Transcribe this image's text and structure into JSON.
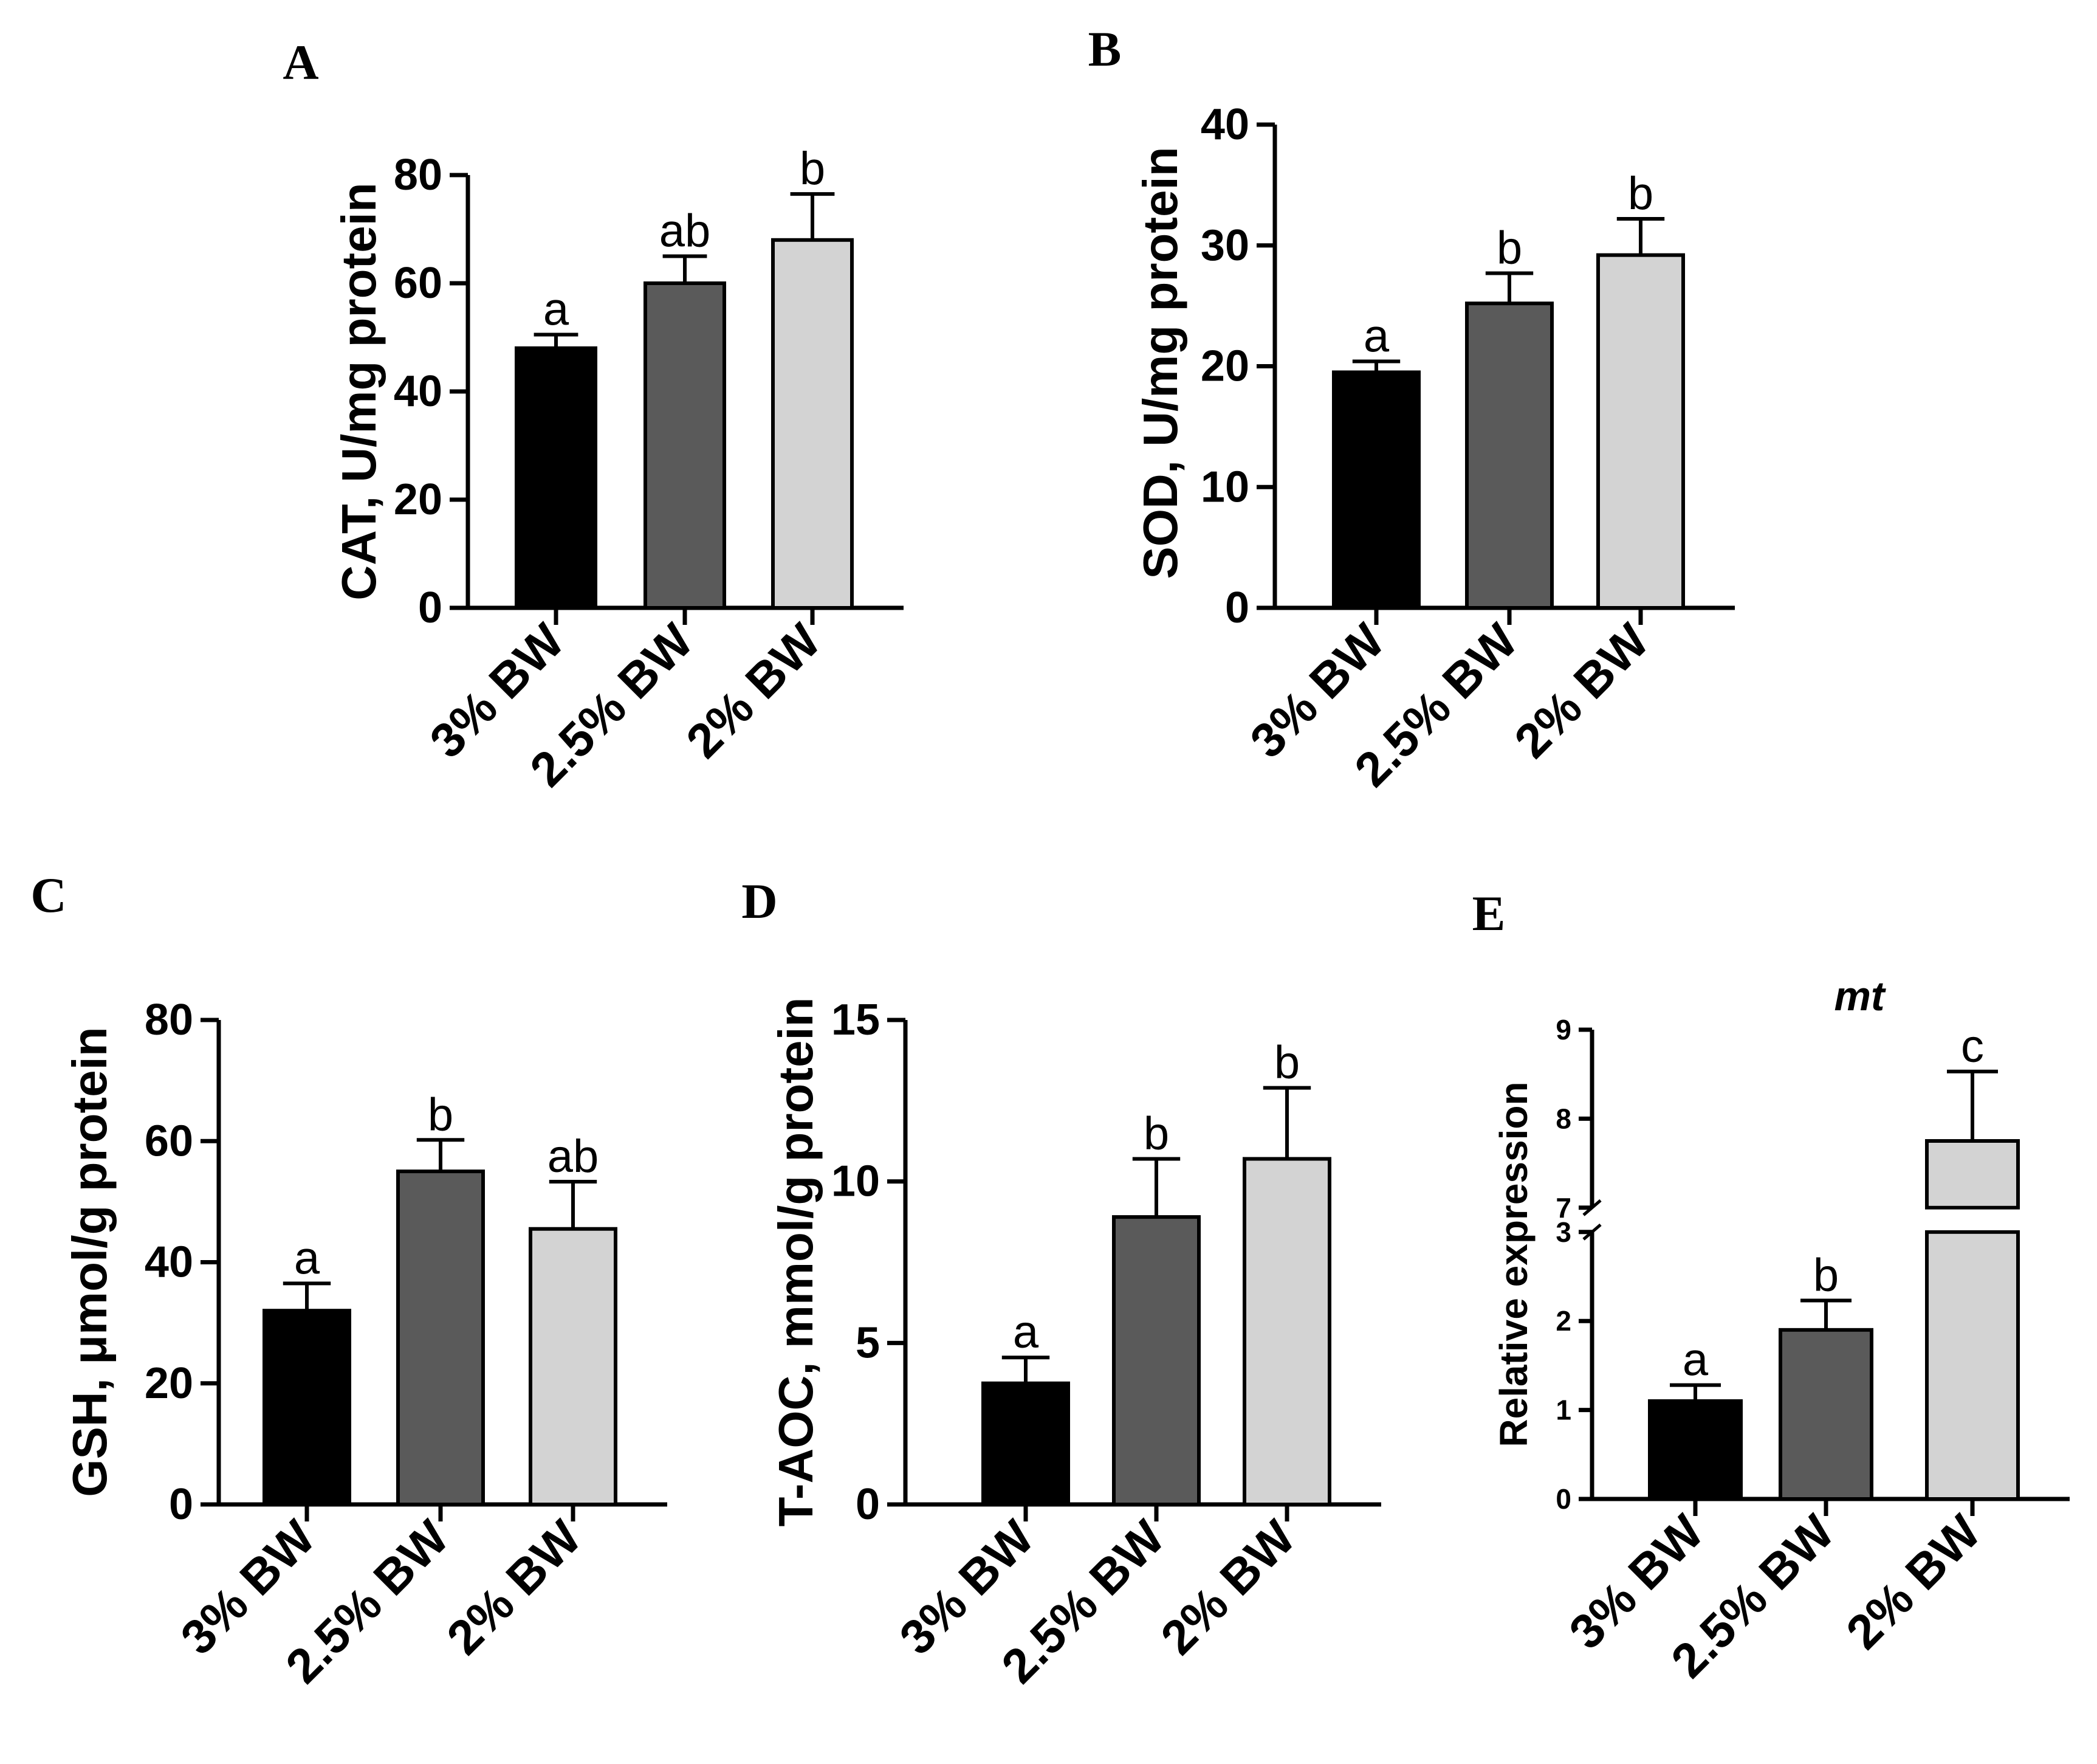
{
  "colors": {
    "bar_fills": [
      "#000000",
      "#5a5a5a",
      "#d3d3d3"
    ],
    "axis": "#000000"
  },
  "chart_data": [
    {
      "panel": "A",
      "type": "bar",
      "ylabel": "CAT, U/mg protein",
      "categories": [
        "3% BW",
        "2.5% BW",
        "2% BW"
      ],
      "values": [
        48,
        60,
        68
      ],
      "errors": [
        2.5,
        5,
        8.5
      ],
      "significance": [
        "a",
        "ab",
        "b"
      ],
      "ylim": [
        0,
        80
      ],
      "yticks": [
        0,
        20,
        40,
        60,
        80
      ]
    },
    {
      "panel": "B",
      "type": "bar",
      "ylabel": "SOD, U/mg protein",
      "categories": [
        "3% BW",
        "2.5% BW",
        "2% BW"
      ],
      "values": [
        19.5,
        25.2,
        29.2
      ],
      "errors": [
        0.9,
        2.5,
        3
      ],
      "significance": [
        "a",
        "b",
        "b"
      ],
      "ylim": [
        0,
        40
      ],
      "yticks": [
        0,
        10,
        20,
        30,
        40
      ]
    },
    {
      "panel": "C",
      "type": "bar",
      "ylabel": "GSH, μmol/g protein",
      "categories": [
        "3% BW",
        "2.5% BW",
        "2% BW"
      ],
      "values": [
        32,
        55,
        45.5
      ],
      "errors": [
        4.5,
        5.2,
        7.8
      ],
      "significance": [
        "a",
        "b",
        "ab"
      ],
      "ylim": [
        0,
        80
      ],
      "yticks": [
        0,
        20,
        40,
        60,
        80
      ]
    },
    {
      "panel": "D",
      "type": "bar",
      "ylabel": "T-AOC, mmol/g protein",
      "categories": [
        "3% BW",
        "2.5% BW",
        "2% BW"
      ],
      "values": [
        3.75,
        8.9,
        10.7
      ],
      "errors": [
        0.8,
        1.8,
        2.2
      ],
      "significance": [
        "a",
        "b",
        "b"
      ],
      "ylim": [
        0,
        15
      ],
      "yticks": [
        0,
        5,
        10,
        15
      ]
    },
    {
      "panel": "E",
      "type": "bar",
      "title": "mt",
      "ylabel": "Relative expression",
      "categories": [
        "3% BW",
        "2.5% BW",
        "2% BW"
      ],
      "values": [
        1.1,
        1.9,
        7.75
      ],
      "errors": [
        0.18,
        0.33,
        0.78
      ],
      "significance": [
        "a",
        "b",
        "c"
      ],
      "ylim": [
        0,
        9
      ],
      "axis_break": [
        3,
        7
      ],
      "yticks": [
        0,
        1,
        2,
        3,
        7,
        8,
        9
      ]
    }
  ]
}
